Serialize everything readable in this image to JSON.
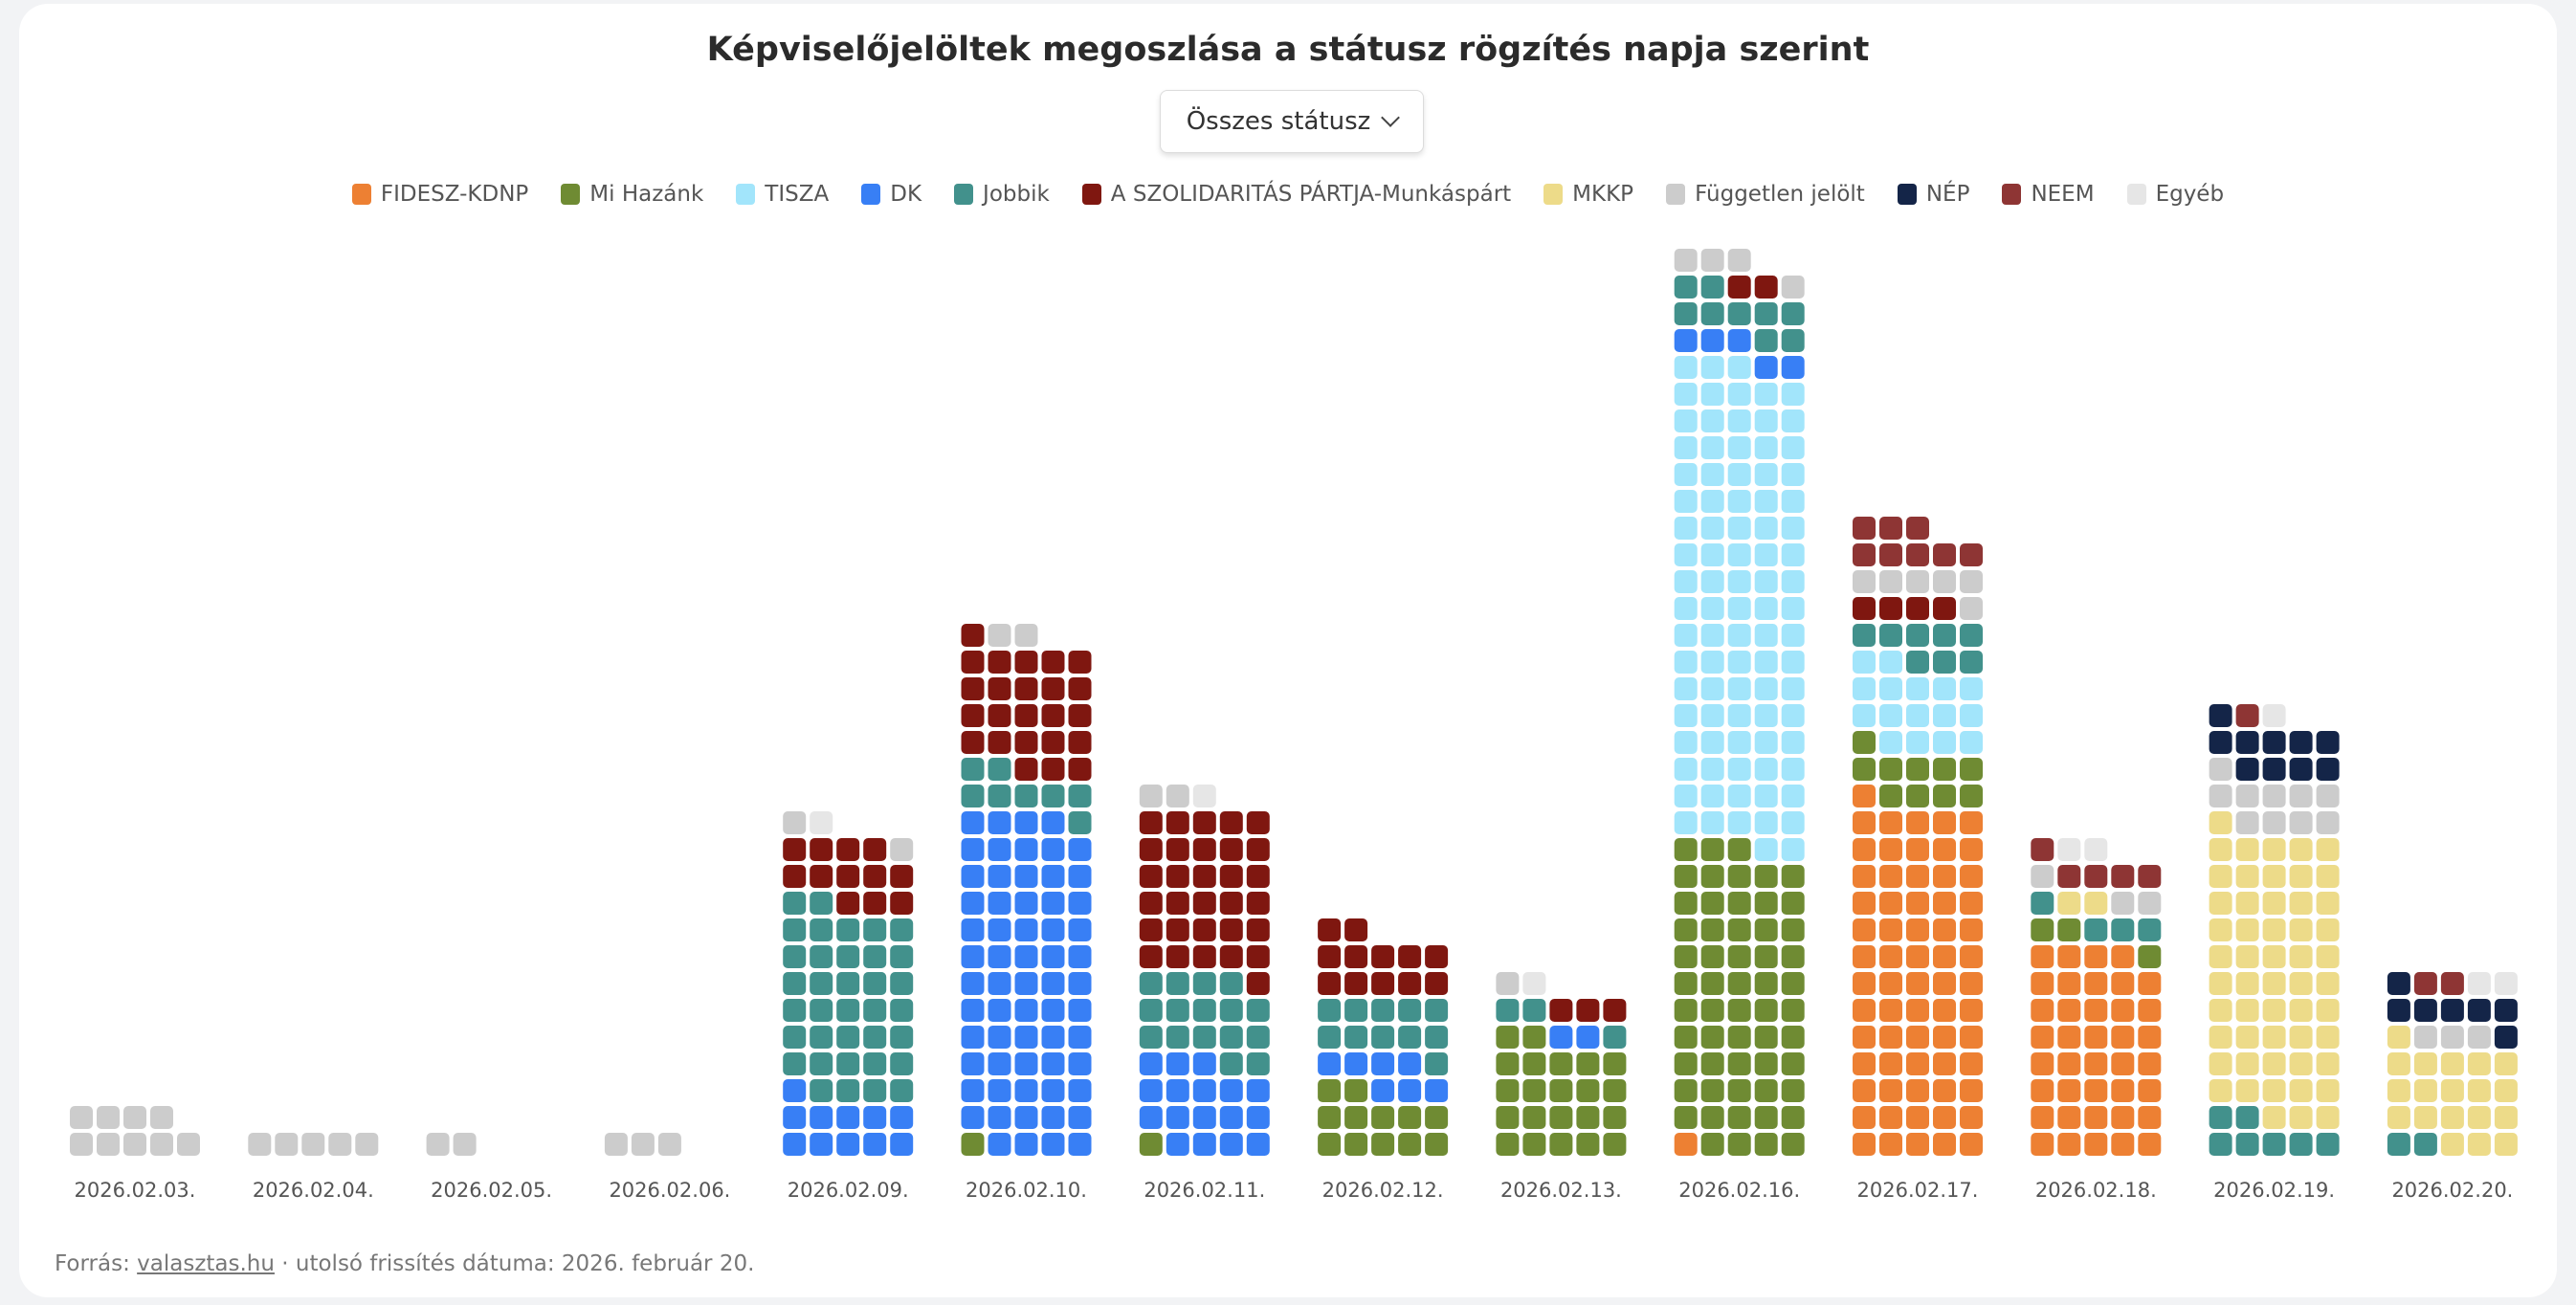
{
  "title": "Képviselőjelöltek megoszlása a státusz rögzítés napja szerint",
  "filter": {
    "selected": "Összes státusz"
  },
  "footer": {
    "source_label": "Forrás:",
    "source_link": "valasztas.hu",
    "updated": "· utolsó frissítés dátuma: 2026. február 20."
  },
  "chart_data": {
    "type": "waffle-stacked-bar",
    "title": "Képviselőjelöltek megoszlása a státusz rögzítés napja szerint",
    "legend_position": "top",
    "columns_per_stack": 5,
    "categories": [
      "2026.02.03.",
      "2026.02.04.",
      "2026.02.05.",
      "2026.02.06.",
      "2026.02.09.",
      "2026.02.10.",
      "2026.02.11.",
      "2026.02.12.",
      "2026.02.13.",
      "2026.02.16.",
      "2026.02.17.",
      "2026.02.18.",
      "2026.02.19.",
      "2026.02.20."
    ],
    "series": [
      {
        "name": "FIDESZ-KDNP",
        "color": "#ed8033",
        "values": [
          0,
          0,
          0,
          0,
          0,
          0,
          0,
          0,
          0,
          1,
          66,
          39,
          0,
          0
        ]
      },
      {
        "name": "Mi Hazánk",
        "color": "#6f8b33",
        "values": [
          0,
          0,
          0,
          0,
          0,
          1,
          1,
          12,
          22,
          57,
          10,
          3,
          0,
          0
        ]
      },
      {
        "name": "TISZA",
        "color": "#a2e5fb",
        "values": [
          0,
          0,
          0,
          0,
          0,
          0,
          0,
          0,
          0,
          90,
          16,
          0,
          0,
          0
        ]
      },
      {
        "name": "DK",
        "color": "#387ff5",
        "values": [
          0,
          0,
          0,
          0,
          11,
          63,
          17,
          7,
          2,
          5,
          0,
          0,
          0,
          0
        ]
      },
      {
        "name": "Jobbik",
        "color": "#42918c",
        "values": [
          0,
          0,
          0,
          0,
          36,
          8,
          16,
          11,
          3,
          9,
          8,
          4,
          7,
          2
        ]
      },
      {
        "name": "A SZOLIDARITÁS PÁRTJA-Munkáspárt",
        "color": "#7f1710",
        "values": [
          0,
          0,
          0,
          0,
          12,
          24,
          31,
          12,
          3,
          2,
          4,
          0,
          0,
          0
        ]
      },
      {
        "name": "MKKP",
        "color": "#eddb89",
        "values": [
          0,
          0,
          0,
          0,
          0,
          0,
          0,
          0,
          0,
          0,
          0,
          2,
          54,
          19
        ]
      },
      {
        "name": "Független jelölt",
        "color": "#cccccc",
        "values": [
          9,
          5,
          2,
          3,
          2,
          2,
          2,
          0,
          1,
          4,
          6,
          3,
          10,
          3
        ]
      },
      {
        "name": "NÉP",
        "color": "#142548",
        "values": [
          0,
          0,
          0,
          0,
          0,
          0,
          0,
          0,
          0,
          0,
          0,
          0,
          10,
          7
        ]
      },
      {
        "name": "NEEM",
        "color": "#8e3534",
        "values": [
          0,
          0,
          0,
          0,
          0,
          0,
          0,
          0,
          0,
          0,
          8,
          5,
          1,
          2
        ]
      },
      {
        "name": "Egyéb",
        "color": "#e6e6e6",
        "values": [
          0,
          0,
          0,
          0,
          1,
          0,
          1,
          0,
          1,
          0,
          0,
          2,
          1,
          2
        ]
      }
    ]
  }
}
